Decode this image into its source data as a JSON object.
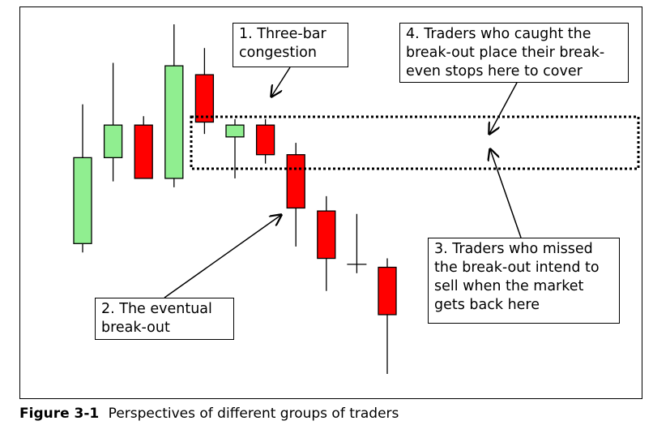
{
  "colors": {
    "bullish": "#90EE90",
    "bearish": "#FF0000",
    "outline": "#000000"
  },
  "candles": [
    {
      "direction": "up",
      "high": 0.78,
      "open": 0.31,
      "close": 0.6,
      "low": 0.28
    },
    {
      "direction": "up",
      "high": 0.92,
      "open": 0.6,
      "close": 0.71,
      "low": 0.52
    },
    {
      "direction": "down",
      "high": 0.74,
      "open": 0.71,
      "close": 0.53,
      "low": 0.53
    },
    {
      "direction": "up",
      "high": 1.05,
      "open": 0.53,
      "close": 0.91,
      "low": 0.5
    },
    {
      "direction": "down",
      "high": 0.97,
      "open": 0.88,
      "close": 0.72,
      "low": 0.68
    },
    {
      "direction": "up",
      "high": 0.73,
      "open": 0.67,
      "close": 0.71,
      "low": 0.53
    },
    {
      "direction": "down",
      "high": 0.73,
      "open": 0.71,
      "close": 0.61,
      "low": 0.58
    },
    {
      "direction": "down",
      "high": 0.65,
      "open": 0.61,
      "close": 0.43,
      "low": 0.3
    },
    {
      "direction": "down",
      "high": 0.47,
      "open": 0.42,
      "close": 0.26,
      "low": 0.15
    },
    {
      "direction": "doji",
      "high": 0.41,
      "open": 0.24,
      "close": 0.24,
      "low": 0.21
    },
    {
      "direction": "down",
      "high": 0.26,
      "open": 0.23,
      "close": 0.07,
      "low": -0.13
    }
  ],
  "annotations": {
    "congestion": "1. Three-bar\ncongestion",
    "breakout": "2. The eventual\nbreak-out",
    "missed": "3. Traders who missed\nthe break-out intend to\nsell when the market\ngets back here",
    "caught": "4. Traders who caught the\nbreak-out place their break-\neven stops here to cover"
  },
  "caption": {
    "label": "Figure 3-1",
    "text": "Perspectives of different groups of traders"
  }
}
